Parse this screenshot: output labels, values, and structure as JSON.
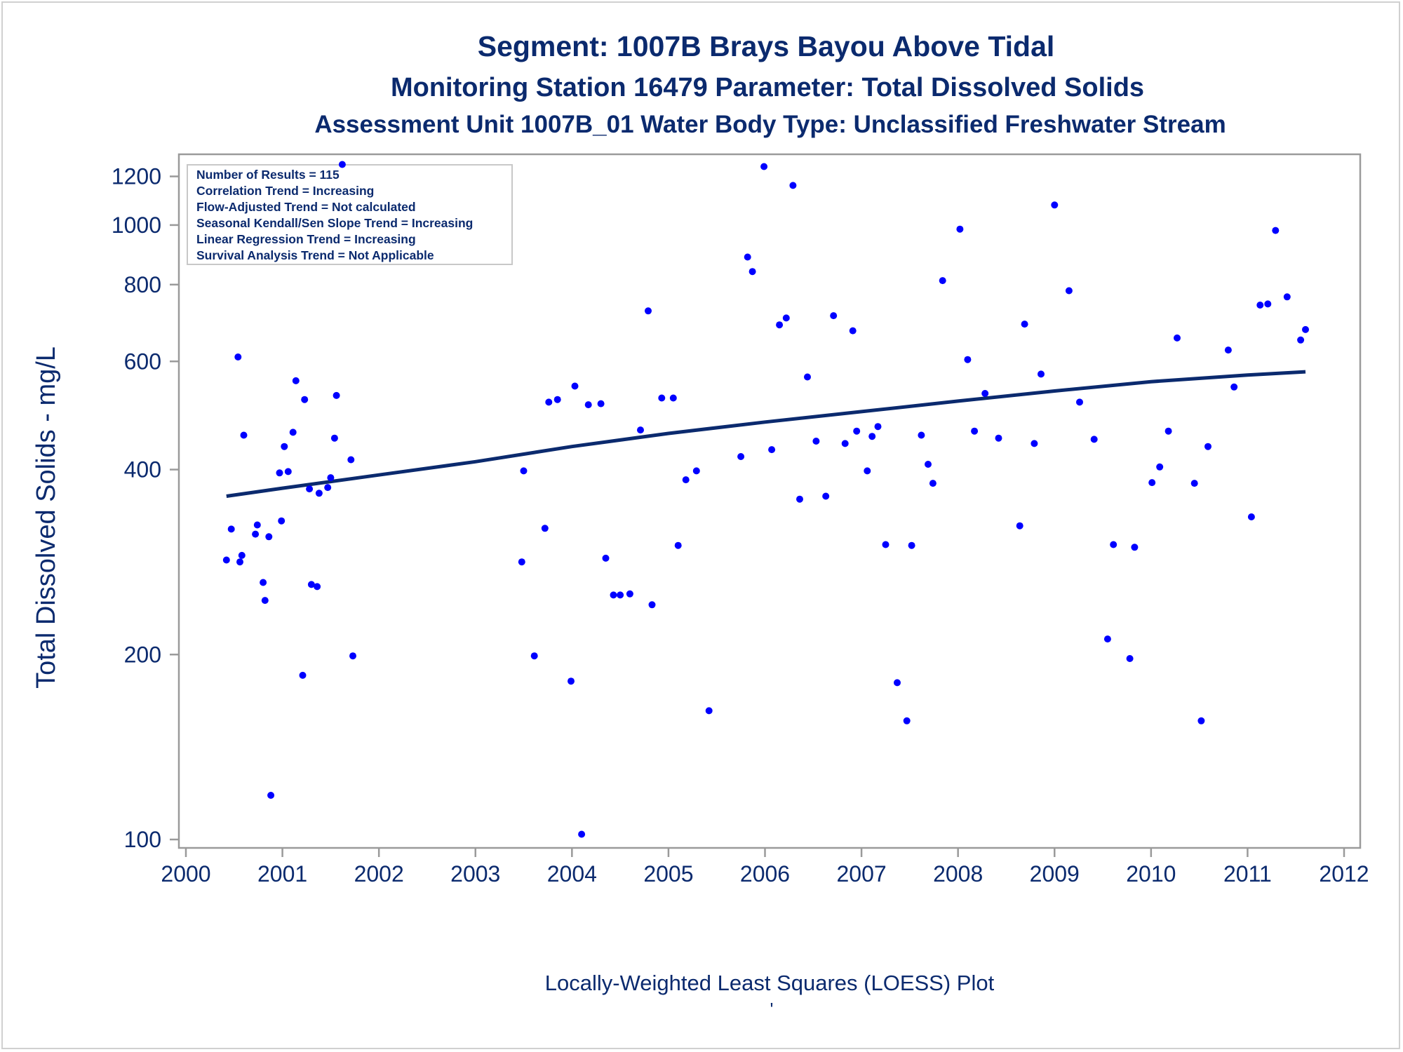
{
  "chart_data": {
    "type": "scatter",
    "title": "Segment: 1007B  Brays Bayou Above Tidal",
    "subtitle": "Monitoring Station 16479 Parameter: Total Dissolved Solids",
    "subtitle2": "Assessment Unit 1007B_01   Water Body Type: Unclassified Freshwater Stream",
    "xlabel": "Locally-Weighted Least Squares (LOESS) Plot",
    "ylabel": "Total Dissolved Solids - mg/L",
    "footnote": "'",
    "xlim": [
      2000,
      2012
    ],
    "ylim": [
      100,
      1250
    ],
    "yscale": "log",
    "grid": false,
    "x_ticks": [
      "2000",
      "2001",
      "2002",
      "2003",
      "2004",
      "2005",
      "2006",
      "2007",
      "2008",
      "2009",
      "2010",
      "2011",
      "2012"
    ],
    "y_ticks": [
      "100",
      "200",
      "400",
      "600",
      "800",
      "1000",
      "1200"
    ],
    "stats_box": {
      "placement": "top-left",
      "lines": [
        "Number of Results = 115",
        "Correlation Trend = Increasing",
        "Flow-Adjusted Trend = Not calculated",
        "Seasonal Kendall/Sen Slope Trend = Increasing",
        "Linear Regression Trend = Increasing",
        "Survival Analysis Trend = Not Applicable"
      ]
    },
    "points_color": "#0000ff",
    "trend_color": "#0b2a6e",
    "series": [
      {
        "type": "scatter",
        "points": [
          [
            2000.42,
            285
          ],
          [
            2000.47,
            320
          ],
          [
            2000.54,
            610
          ],
          [
            2000.56,
            283
          ],
          [
            2000.58,
            290
          ],
          [
            2000.6,
            455
          ],
          [
            2000.72,
            314
          ],
          [
            2000.74,
            325
          ],
          [
            2000.8,
            262
          ],
          [
            2000.82,
            245
          ],
          [
            2000.86,
            311
          ],
          [
            2000.88,
            118
          ],
          [
            2000.97,
            395
          ],
          [
            2000.99,
            330
          ],
          [
            2001.02,
            436
          ],
          [
            2001.06,
            397
          ],
          [
            2001.11,
            460
          ],
          [
            2001.14,
            558
          ],
          [
            2001.21,
            185
          ],
          [
            2001.23,
            520
          ],
          [
            2001.28,
            372
          ],
          [
            2001.3,
            260
          ],
          [
            2001.36,
            258
          ],
          [
            2001.38,
            366
          ],
          [
            2001.47,
            374
          ],
          [
            2001.5,
            388
          ],
          [
            2001.54,
            450
          ],
          [
            2001.56,
            528
          ],
          [
            2001.62,
            1255
          ],
          [
            2001.71,
            415
          ],
          [
            2001.73,
            199
          ],
          [
            2003.48,
            283
          ],
          [
            2003.5,
            398
          ],
          [
            2003.61,
            199
          ],
          [
            2003.72,
            321
          ],
          [
            2003.76,
            515
          ],
          [
            2003.85,
            520
          ],
          [
            2003.99,
            181
          ],
          [
            2004.03,
            547
          ],
          [
            2004.1,
            102
          ],
          [
            2004.17,
            510
          ],
          [
            2004.3,
            512
          ],
          [
            2004.35,
            287
          ],
          [
            2004.43,
            250
          ],
          [
            2004.5,
            250
          ],
          [
            2004.6,
            251
          ],
          [
            2004.71,
            464
          ],
          [
            2004.79,
            725
          ],
          [
            2004.83,
            241
          ],
          [
            2004.93,
            523
          ],
          [
            2005.05,
            523
          ],
          [
            2005.1,
            301
          ],
          [
            2005.18,
            385
          ],
          [
            2005.29,
            398
          ],
          [
            2005.42,
            162
          ],
          [
            2005.75,
            420
          ],
          [
            2005.82,
            887
          ],
          [
            2005.87,
            840
          ],
          [
            2005.99,
            1245
          ],
          [
            2006.07,
            431
          ],
          [
            2006.15,
            688
          ],
          [
            2006.22,
            706
          ],
          [
            2006.29,
            1160
          ],
          [
            2006.36,
            358
          ],
          [
            2006.44,
            566
          ],
          [
            2006.53,
            445
          ],
          [
            2006.63,
            362
          ],
          [
            2006.71,
            712
          ],
          [
            2006.83,
            441
          ],
          [
            2006.91,
            673
          ],
          [
            2006.95,
            462
          ],
          [
            2007.06,
            398
          ],
          [
            2007.11,
            453
          ],
          [
            2007.17,
            470
          ],
          [
            2007.25,
            302
          ],
          [
            2007.37,
            180
          ],
          [
            2007.47,
            156
          ],
          [
            2007.52,
            301
          ],
          [
            2007.62,
            455
          ],
          [
            2007.69,
            408
          ],
          [
            2007.74,
            380
          ],
          [
            2007.84,
            812
          ],
          [
            2008.02,
            985
          ],
          [
            2008.1,
            604
          ],
          [
            2008.17,
            462
          ],
          [
            2008.28,
            532
          ],
          [
            2008.42,
            450
          ],
          [
            2008.64,
            324
          ],
          [
            2008.69,
            690
          ],
          [
            2008.79,
            441
          ],
          [
            2008.86,
            572
          ],
          [
            2009.0,
            1078
          ],
          [
            2009.15,
            782
          ],
          [
            2009.26,
            515
          ],
          [
            2009.41,
            448
          ],
          [
            2009.55,
            212
          ],
          [
            2009.61,
            302
          ],
          [
            2009.78,
            197
          ],
          [
            2009.83,
            299
          ],
          [
            2010.01,
            381
          ],
          [
            2010.09,
            404
          ],
          [
            2010.18,
            462
          ],
          [
            2010.27,
            655
          ],
          [
            2010.45,
            380
          ],
          [
            2010.52,
            156
          ],
          [
            2010.59,
            436
          ],
          [
            2010.8,
            626
          ],
          [
            2010.86,
            545
          ],
          [
            2011.04,
            335
          ],
          [
            2011.13,
            741
          ],
          [
            2011.21,
            744
          ],
          [
            2011.29,
            980
          ],
          [
            2011.41,
            764
          ],
          [
            2011.55,
            650
          ],
          [
            2011.6,
            676
          ]
        ]
      },
      {
        "type": "line",
        "name": "LOESS",
        "points": [
          [
            2000.42,
            362
          ],
          [
            2001.0,
            373
          ],
          [
            2002.0,
            392
          ],
          [
            2003.0,
            412
          ],
          [
            2004.0,
            436
          ],
          [
            2005.0,
            458
          ],
          [
            2006.0,
            478
          ],
          [
            2007.0,
            497
          ],
          [
            2008.0,
            517
          ],
          [
            2009.0,
            537
          ],
          [
            2010.0,
            556
          ],
          [
            2011.0,
            570
          ],
          [
            2011.6,
            577
          ]
        ]
      }
    ]
  }
}
